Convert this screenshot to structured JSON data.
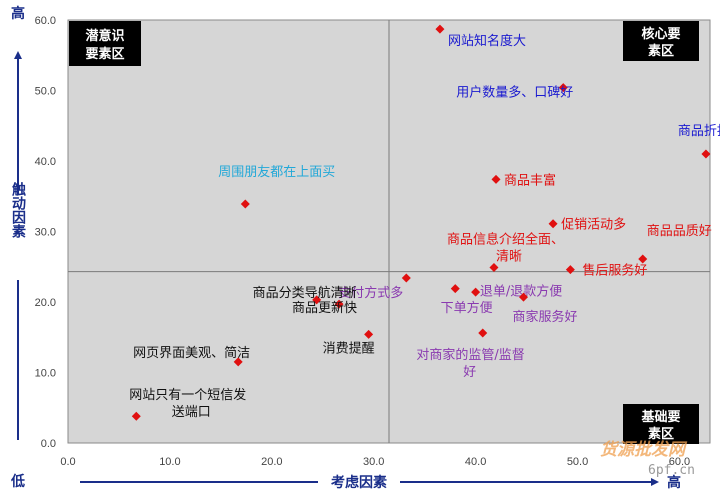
{
  "chart_data": {
    "type": "scatter",
    "title": "",
    "xlabel": "考虑因素",
    "ylabel": "触动因素",
    "xlim": [
      0,
      63
    ],
    "ylim": [
      0,
      60
    ],
    "x_ticks": [
      "0.0",
      "10.0",
      "20.0",
      "30.0",
      "40.0",
      "50.0",
      "60.0"
    ],
    "x_tick_values": [
      0,
      10,
      20,
      30,
      40,
      50,
      60
    ],
    "y_ticks": [
      "0.0",
      "10.0",
      "20.0",
      "30.0",
      "40.0",
      "50.0",
      "60.0"
    ],
    "y_tick_values": [
      0,
      10,
      20,
      30,
      40,
      50,
      60
    ],
    "divider": {
      "x": 31.5,
      "y": 24.3
    },
    "grid": false,
    "axis_words": {
      "y_high": "高",
      "y_low": "低",
      "x_high": "高"
    },
    "quadrants": {
      "top_left": [
        "潜意识",
        "要素区"
      ],
      "top_right": [
        "核心要",
        "素区"
      ],
      "bottom_right": [
        "基础要",
        "素区"
      ]
    },
    "marker_color": "#e01010",
    "colors": {
      "blue": "#1a1ad0",
      "red": "#e01010",
      "purple": "#8a3ab0",
      "cyan": "#22a8d8",
      "black": "#111111"
    },
    "points": [
      {
        "x": 36.5,
        "y": 58.7,
        "label": [
          "网站知名度大"
        ],
        "color": "blue"
      },
      {
        "x": 48.6,
        "y": 50.4,
        "label": [
          "用户数量多、口碑好"
        ],
        "color": "blue"
      },
      {
        "x": 62.6,
        "y": 41.0,
        "label": [
          "商品折扣更多"
        ],
        "color": "blue"
      },
      {
        "x": 17.4,
        "y": 33.9,
        "label": [
          "周围朋友都在上面买"
        ],
        "color": "cyan"
      },
      {
        "x": 42.0,
        "y": 37.4,
        "label": [
          "商品丰富"
        ],
        "color": "red"
      },
      {
        "x": 47.6,
        "y": 31.1,
        "label": [
          "促销活动多"
        ],
        "color": "red"
      },
      {
        "x": 41.8,
        "y": 24.9,
        "label": [
          "商品信息介绍全面、",
          "清晰"
        ],
        "color": "red"
      },
      {
        "x": 56.4,
        "y": 26.1,
        "label": [
          "商品品质好"
        ],
        "color": "red"
      },
      {
        "x": 49.3,
        "y": 24.6,
        "label": [
          "售后服务好"
        ],
        "color": "red"
      },
      {
        "x": 33.2,
        "y": 23.4,
        "label": [
          "支付方式多"
        ],
        "color": "purple"
      },
      {
        "x": 38.0,
        "y": 21.9,
        "label": [
          "退单/退款方便"
        ],
        "color": "purple"
      },
      {
        "x": 40.0,
        "y": 21.4,
        "label": [
          "下单方便"
        ],
        "color": "purple"
      },
      {
        "x": 44.7,
        "y": 20.7,
        "label": [
          "商家服务好"
        ],
        "color": "purple"
      },
      {
        "x": 40.7,
        "y": 15.6,
        "label": [
          "对商家的监管/监督",
          "好"
        ],
        "color": "purple"
      },
      {
        "x": 24.4,
        "y": 20.3,
        "label": [
          "商品分类导航清晰"
        ],
        "color": "black"
      },
      {
        "x": 26.6,
        "y": 19.7,
        "label": [
          "商品更新快"
        ],
        "color": "black"
      },
      {
        "x": 29.5,
        "y": 15.4,
        "label": [
          "消费提醒"
        ],
        "color": "black"
      },
      {
        "x": 16.7,
        "y": 11.5,
        "label": [
          "网页界面美观、简洁"
        ],
        "color": "black"
      },
      {
        "x": 6.7,
        "y": 3.8,
        "label": [
          "网站只有一个短信发",
          "送端口"
        ],
        "color": "black"
      }
    ]
  },
  "watermark": {
    "main": "货源批发网",
    "sub": "6pf.cn"
  }
}
